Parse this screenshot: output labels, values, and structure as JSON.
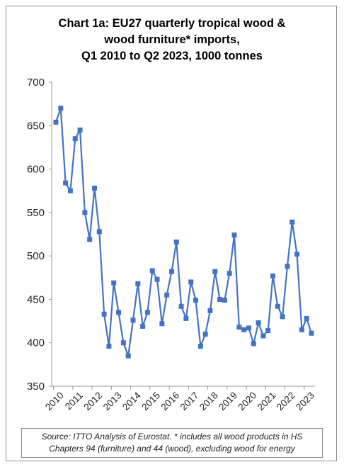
{
  "chart_data": {
    "type": "line",
    "title_lines": [
      "Chart 1a: EU27 quarterly tropical wood &",
      "wood furniture* imports,",
      "Q1 2010 to Q2 2023, 1000 tonnes"
    ],
    "xlabel": "",
    "ylabel": "",
    "ylim": [
      350,
      700
    ],
    "yticks": [
      "350",
      "400",
      "450",
      "500",
      "550",
      "600",
      "650",
      "700"
    ],
    "xticks": [
      "2010",
      "2011",
      "2012",
      "2013",
      "2014",
      "2015",
      "2016",
      "2017",
      "2018",
      "2019",
      "2020",
      "2021",
      "2022",
      "2023"
    ],
    "grid": false,
    "legend": "none",
    "color": "#4472c4",
    "marker": "square",
    "series": [
      {
        "values": [
          654,
          670,
          584,
          575,
          635,
          645,
          550,
          519,
          578,
          528,
          433,
          396,
          469,
          435,
          400,
          385,
          426,
          468,
          419,
          435,
          483,
          473,
          422,
          455,
          482,
          516,
          442,
          428,
          470,
          449,
          396,
          410,
          437,
          482,
          450,
          449,
          480,
          524,
          418,
          415,
          417,
          399,
          423,
          408,
          414,
          477,
          442,
          430,
          488,
          539,
          502,
          415,
          428,
          411
        ]
      }
    ]
  },
  "source_note": {
    "line1": "Source: ITTO Analysis of Eurostat. * includes all wood products in HS",
    "line2": "Chapters 94 (furniture) and 44 (wood), excluding wood for energy"
  }
}
